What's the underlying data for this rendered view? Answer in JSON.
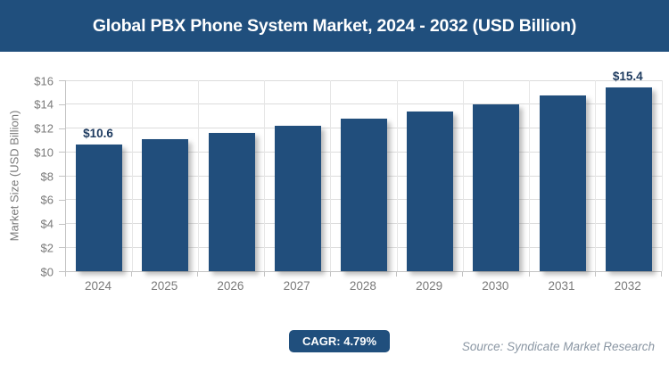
{
  "header": {
    "title": "Global PBX Phone System Market, 2024 - 2032 (USD Billion)"
  },
  "colors": {
    "primary_blue": "#204f7d",
    "bar_fill": "#214e7c",
    "data_label": "#1d3a5f",
    "grid_line": "#dcdcdc",
    "axis_line": "#c3c3c3",
    "tick_text": "#7a7a7a",
    "source_text": "#8a96a3"
  },
  "chart_data": {
    "type": "bar",
    "title": "Global PBX Phone System Market, 2024 - 2032 (USD Billion)",
    "categories": [
      "2024",
      "2025",
      "2026",
      "2027",
      "2028",
      "2029",
      "2030",
      "2031",
      "2032"
    ],
    "values": [
      10.6,
      11.1,
      11.6,
      12.2,
      12.8,
      13.4,
      14.0,
      14.7,
      15.4
    ],
    "point_labels": [
      "$10.6",
      "",
      "",
      "",
      "",
      "",
      "",
      "",
      "$15.4"
    ],
    "xlabel": "",
    "ylabel": "Market Size (USD Billion)",
    "ylim": [
      0,
      16
    ],
    "ytick_step": 2,
    "ytick_prefix": "$",
    "grid": "horizontal and vertical, light gray",
    "legend": "none"
  },
  "footer": {
    "cagr_label": "CAGR: 4.79%",
    "source": "Source: Syndicate Market Research"
  }
}
